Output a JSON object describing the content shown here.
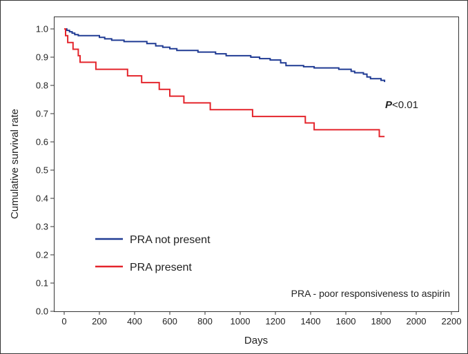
{
  "chart_data": {
    "type": "line",
    "title": "",
    "xlabel": "Days",
    "ylabel": "Cumulative survival rate",
    "xlim": [
      0,
      2200
    ],
    "ylim": [
      0,
      1.0
    ],
    "x_ticks": [
      0,
      200,
      400,
      600,
      800,
      1000,
      1200,
      1400,
      1600,
      1800,
      2000,
      2200
    ],
    "y_ticks": [
      "0.0",
      "0.1",
      "0.2",
      "0.3",
      "0.4",
      "0.5",
      "0.6",
      "0.7",
      "0.8",
      "0.9",
      "1.0"
    ],
    "grid": false,
    "legend_position": "bottom-left",
    "series": [
      {
        "name": "PRA not present",
        "color": "#1f3a93",
        "points": [
          [
            0,
            1.0
          ],
          [
            15,
            0.995
          ],
          [
            30,
            0.99
          ],
          [
            45,
            0.985
          ],
          [
            60,
            0.98
          ],
          [
            80,
            0.976
          ],
          [
            200,
            0.97
          ],
          [
            230,
            0.965
          ],
          [
            270,
            0.96
          ],
          [
            340,
            0.955
          ],
          [
            470,
            0.948
          ],
          [
            520,
            0.94
          ],
          [
            560,
            0.935
          ],
          [
            600,
            0.93
          ],
          [
            640,
            0.924
          ],
          [
            760,
            0.918
          ],
          [
            860,
            0.912
          ],
          [
            920,
            0.905
          ],
          [
            1060,
            0.9
          ],
          [
            1110,
            0.895
          ],
          [
            1170,
            0.89
          ],
          [
            1230,
            0.88
          ],
          [
            1260,
            0.87
          ],
          [
            1360,
            0.866
          ],
          [
            1420,
            0.862
          ],
          [
            1560,
            0.857
          ],
          [
            1630,
            0.85
          ],
          [
            1650,
            0.845
          ],
          [
            1700,
            0.84
          ],
          [
            1720,
            0.83
          ],
          [
            1740,
            0.824
          ],
          [
            1800,
            0.818
          ],
          [
            1820,
            0.812
          ]
        ]
      },
      {
        "name": "PRA present",
        "color": "#e4242b",
        "points": [
          [
            0,
            1.0
          ],
          [
            8,
            0.976
          ],
          [
            20,
            0.952
          ],
          [
            50,
            0.928
          ],
          [
            80,
            0.905
          ],
          [
            90,
            0.882
          ],
          [
            180,
            0.857
          ],
          [
            360,
            0.834
          ],
          [
            440,
            0.81
          ],
          [
            540,
            0.786
          ],
          [
            600,
            0.762
          ],
          [
            680,
            0.738
          ],
          [
            830,
            0.714
          ],
          [
            1070,
            0.69
          ],
          [
            1370,
            0.667
          ],
          [
            1420,
            0.643
          ],
          [
            1790,
            0.619
          ],
          [
            1820,
            0.619
          ]
        ]
      }
    ],
    "annotations": {
      "p_value_label": "P",
      "p_value_rest": "<0.01",
      "footnote": "PRA - poor responsiveness to aspirin"
    }
  }
}
